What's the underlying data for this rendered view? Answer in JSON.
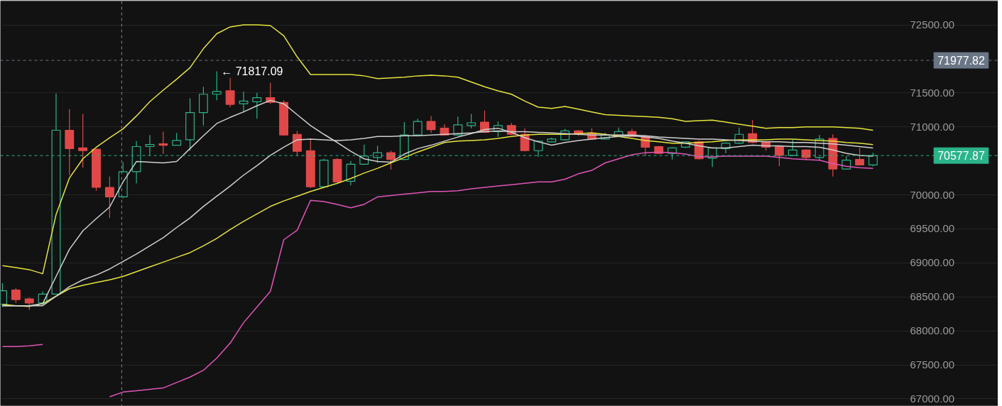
{
  "chart_data": {
    "type": "candlestick",
    "categories": [
      null,
      null,
      null,
      null,
      null,
      null,
      null,
      null,
      null,
      null,
      null,
      null,
      null,
      null,
      null,
      null,
      null,
      null,
      null,
      null,
      null,
      null,
      null,
      null,
      null,
      null,
      null,
      null,
      null,
      null,
      null,
      null,
      null,
      null,
      null,
      null,
      null,
      null,
      null,
      null,
      null,
      null,
      null,
      null,
      null,
      null,
      null,
      null,
      null,
      null,
      null,
      null,
      null,
      null,
      null,
      null,
      null,
      null,
      null,
      null,
      null,
      null,
      null,
      null,
      null,
      null
    ],
    "ohlc": [
      [
        68390,
        68700,
        68350,
        68590
      ],
      [
        68600,
        68630,
        68410,
        68460
      ],
      [
        68470,
        68490,
        68310,
        68410
      ],
      [
        68410,
        68580,
        68380,
        68540
      ],
      [
        68540,
        71490,
        68540,
        70950
      ],
      [
        70950,
        71260,
        70290,
        70680
      ],
      [
        70690,
        71190,
        70400,
        70650
      ],
      [
        70670,
        70680,
        70060,
        70110
      ],
      [
        70110,
        70270,
        69660,
        69970
      ],
      [
        69970,
        70480,
        69950,
        70340
      ],
      [
        70340,
        70790,
        70170,
        70710
      ],
      [
        70710,
        70880,
        70580,
        70740
      ],
      [
        70750,
        70930,
        70600,
        70730
      ],
      [
        70730,
        70910,
        70730,
        70800
      ],
      [
        70810,
        71420,
        70650,
        71210
      ],
      [
        71210,
        71590,
        71020,
        71480
      ],
      [
        71480,
        71817.09,
        71390,
        71520
      ],
      [
        71530,
        71720,
        71290,
        71330
      ],
      [
        71340,
        71520,
        71210,
        71380
      ],
      [
        71370,
        71500,
        71120,
        71430
      ],
      [
        71430,
        71650,
        71340,
        71360
      ],
      [
        71360,
        71390,
        70870,
        70880
      ],
      [
        70890,
        70940,
        70570,
        70640
      ],
      [
        70650,
        70830,
        70100,
        70120
      ],
      [
        70120,
        70530,
        70100,
        70510
      ],
      [
        70520,
        70540,
        70190,
        70190
      ],
      [
        70200,
        70500,
        70140,
        70450
      ],
      [
        70450,
        70740,
        70440,
        70570
      ],
      [
        70550,
        70720,
        70470,
        70620
      ],
      [
        70620,
        70650,
        70370,
        70520
      ],
      [
        70520,
        71070,
        70510,
        70880
      ],
      [
        70880,
        71120,
        70870,
        71080
      ],
      [
        71080,
        71160,
        70910,
        70960
      ],
      [
        70980,
        71040,
        70870,
        70880
      ],
      [
        70880,
        71150,
        70870,
        71030
      ],
      [
        71020,
        71190,
        70980,
        71060
      ],
      [
        71070,
        71240,
        70910,
        70920
      ],
      [
        70930,
        71080,
        70850,
        71020
      ],
      [
        71020,
        71060,
        70880,
        70890
      ],
      [
        70890,
        70980,
        70640,
        70650
      ],
      [
        70650,
        70800,
        70560,
        70790
      ],
      [
        70780,
        70840,
        70770,
        70820
      ],
      [
        70810,
        70970,
        70800,
        70940
      ],
      [
        70940,
        70950,
        70870,
        70890
      ],
      [
        70910,
        70980,
        70810,
        70820
      ],
      [
        70820,
        70910,
        70810,
        70880
      ],
      [
        70870,
        70990,
        70860,
        70930
      ],
      [
        70930,
        70970,
        70850,
        70860
      ],
      [
        70860,
        70870,
        70570,
        70700
      ],
      [
        70710,
        70720,
        70600,
        70610
      ],
      [
        70610,
        70700,
        70520,
        70690
      ],
      [
        70700,
        70790,
        70690,
        70780
      ],
      [
        70780,
        70800,
        70520,
        70530
      ],
      [
        70540,
        70700,
        70410,
        70690
      ],
      [
        70680,
        70770,
        70610,
        70760
      ],
      [
        70760,
        70990,
        70750,
        70890
      ],
      [
        70900,
        71100,
        70760,
        70770
      ],
      [
        70780,
        70790,
        70650,
        70700
      ],
      [
        70710,
        70720,
        70420,
        70580
      ],
      [
        70580,
        70810,
        70570,
        70660
      ],
      [
        70660,
        70670,
        70510,
        70550
      ],
      [
        70550,
        70880,
        70510,
        70820
      ],
      [
        70830,
        70890,
        70270,
        70380
      ],
      [
        70380,
        70570,
        70370,
        70510
      ],
      [
        70520,
        70690,
        70430,
        70440
      ],
      [
        70440,
        70620,
        70420,
        70577.87
      ]
    ],
    "colors": [
      "#2bb38a",
      "#e04848",
      "#e04848",
      "#2bb38a",
      "#2bb38a",
      "#e04848",
      "#e04848",
      "#e04848",
      "#e04848",
      "#2bb38a",
      "#2bb38a",
      "#2bb38a",
      "#e04848",
      "#2bb38a",
      "#2bb38a",
      "#2bb38a",
      "#2bb38a",
      "#e04848",
      "#2bb38a",
      "#2bb38a",
      "#e04848",
      "#e04848",
      "#e04848",
      "#e04848",
      "#2bb38a",
      "#e04848",
      "#2bb38a",
      "#2bb38a",
      "#2bb38a",
      "#e04848",
      "#2bb38a",
      "#2bb38a",
      "#e04848",
      "#e04848",
      "#2bb38a",
      "#2bb38a",
      "#e04848",
      "#2bb38a",
      "#e04848",
      "#e04848",
      "#2bb38a",
      "#2bb38a",
      "#2bb38a",
      "#e04848",
      "#e04848",
      "#2bb38a",
      "#2bb38a",
      "#e04848",
      "#e04848",
      "#e04848",
      "#2bb38a",
      "#2bb38a",
      "#e04848",
      "#2bb38a",
      "#2bb38a",
      "#2bb38a",
      "#e04848",
      "#e04848",
      "#e04848",
      "#2bb38a",
      "#e04848",
      "#2bb38a",
      "#e04848",
      "#2bb38a",
      "#e04848",
      "#2bb38a"
    ],
    "series": [
      {
        "type": "line",
        "color": "#e6e43c",
        "values": [
          68960,
          68930,
          68900,
          68840,
          69710,
          70250,
          70530,
          70700,
          70840,
          70970,
          71160,
          71370,
          71540,
          71700,
          71870,
          72150,
          72370,
          72470,
          72500,
          72500,
          72490,
          72340,
          72030,
          71770,
          71770,
          71770,
          71770,
          71750,
          71710,
          71720,
          71730,
          71750,
          71760,
          71750,
          71730,
          71660,
          71590,
          71530,
          71480,
          71380,
          71290,
          71270,
          71300,
          71260,
          71220,
          71180,
          71170,
          71160,
          71150,
          71140,
          71120,
          71080,
          71090,
          71100,
          71070,
          71040,
          71010,
          70980,
          70990,
          70990,
          71000,
          71000,
          71000,
          70990,
          70980,
          70950
        ]
      },
      {
        "type": "line",
        "color": "#e6e43c",
        "values": [
          68390,
          68370,
          68360,
          68400,
          68510,
          68620,
          68670,
          68710,
          68750,
          68800,
          68870,
          68940,
          69010,
          69080,
          69150,
          69250,
          69360,
          69490,
          69610,
          69720,
          69830,
          69910,
          69980,
          70050,
          70110,
          70170,
          70240,
          70320,
          70390,
          70470,
          70550,
          70630,
          70700,
          70770,
          70790,
          70800,
          70810,
          70830,
          70860,
          70880,
          70890,
          70890,
          70890,
          70900,
          70910,
          70890,
          70860,
          70830,
          70800,
          70780,
          70760,
          70760,
          70770,
          70780,
          70800,
          70810,
          70810,
          70810,
          70820,
          70820,
          70810,
          70800,
          70790,
          70770,
          70760,
          70740
        ]
      },
      {
        "type": "line",
        "color": "#cfcfcf",
        "values": [
          68370,
          68370,
          68370,
          68370,
          68510,
          68650,
          68750,
          68820,
          68910,
          69020,
          69130,
          69250,
          69370,
          69520,
          69660,
          69830,
          69980,
          70130,
          70290,
          70430,
          70580,
          70700,
          70810,
          70820,
          70810,
          70800,
          70810,
          70830,
          70860,
          70860,
          70870,
          70870,
          70880,
          70890,
          70900,
          70910,
          70930,
          70940,
          70930,
          70930,
          70920,
          70910,
          70900,
          70890,
          70880,
          70880,
          70880,
          70880,
          70870,
          70850,
          70840,
          70830,
          70820,
          70820,
          70810,
          70800,
          70790,
          70780,
          70780,
          70770,
          70770,
          70760,
          70750,
          70730,
          70710,
          70690
        ]
      },
      {
        "type": "line",
        "color": "#cfcfcf",
        "values": [
          68370,
          68370,
          68370,
          68400,
          68800,
          69200,
          69470,
          69650,
          69820,
          70190,
          70490,
          70480,
          70470,
          70490,
          70680,
          70870,
          71050,
          71140,
          71220,
          71310,
          71390,
          71340,
          71180,
          71020,
          70890,
          70770,
          70640,
          70530,
          70490,
          70480,
          70600,
          70680,
          70730,
          70790,
          70850,
          70900,
          70960,
          70980,
          70920,
          70840,
          70780,
          70730,
          70770,
          70800,
          70820,
          70840,
          70860,
          70870,
          70850,
          70830,
          70790,
          70760,
          70720,
          70690,
          70690,
          70710,
          70730,
          70720,
          70720,
          70710,
          70710,
          70700,
          70660,
          70610,
          70580,
          70570
        ]
      },
      {
        "type": "line",
        "color": "#e055b8",
        "values": [
          67770,
          67770,
          67780,
          67800,
          null,
          null,
          null,
          null,
          67030,
          67100,
          67120,
          67140,
          67160,
          67240,
          67320,
          67420,
          67600,
          67820,
          68120,
          68350,
          68580,
          69340,
          69480,
          69920,
          69900,
          69860,
          69810,
          69860,
          69970,
          69990,
          70010,
          70030,
          70050,
          70050,
          70060,
          70090,
          70110,
          70130,
          70150,
          70170,
          70190,
          70190,
          70230,
          70310,
          70360,
          70470,
          70530,
          70590,
          70620,
          70630,
          70620,
          70600,
          70560,
          70560,
          70570,
          70570,
          70570,
          70570,
          70550,
          70530,
          70520,
          70510,
          70460,
          70420,
          70400,
          70390
        ]
      }
    ],
    "annotations": [
      "← 71817.09"
    ],
    "ref_lines": [
      {
        "axis": "y",
        "value": 71977.82,
        "label": "71977.82",
        "color": "#6a7585",
        "line_style": "dashed"
      },
      {
        "axis": "y",
        "value": 70577.87,
        "label": "70577.87",
        "color": "#2bb38a",
        "line_style": "dashed"
      }
    ],
    "ylim": [
      66900,
      72850
    ],
    "yticks": [
      {
        "value": 67000,
        "label": "67000.00"
      },
      {
        "value": 67500,
        "label": "67500.00"
      },
      {
        "value": 68000,
        "label": "68000.00"
      },
      {
        "value": 68500,
        "label": "68500.00"
      },
      {
        "value": 69000,
        "label": "69000.00"
      },
      {
        "value": 69500,
        "label": "69500.00"
      },
      {
        "value": 70000,
        "label": "70000.00"
      },
      {
        "value": 71000,
        "label": "71000.00"
      },
      {
        "value": 71500,
        "label": "71500.00"
      },
      {
        "value": 72500,
        "label": "72500.00"
      }
    ],
    "grid": "y",
    "tick_labels": "y"
  }
}
